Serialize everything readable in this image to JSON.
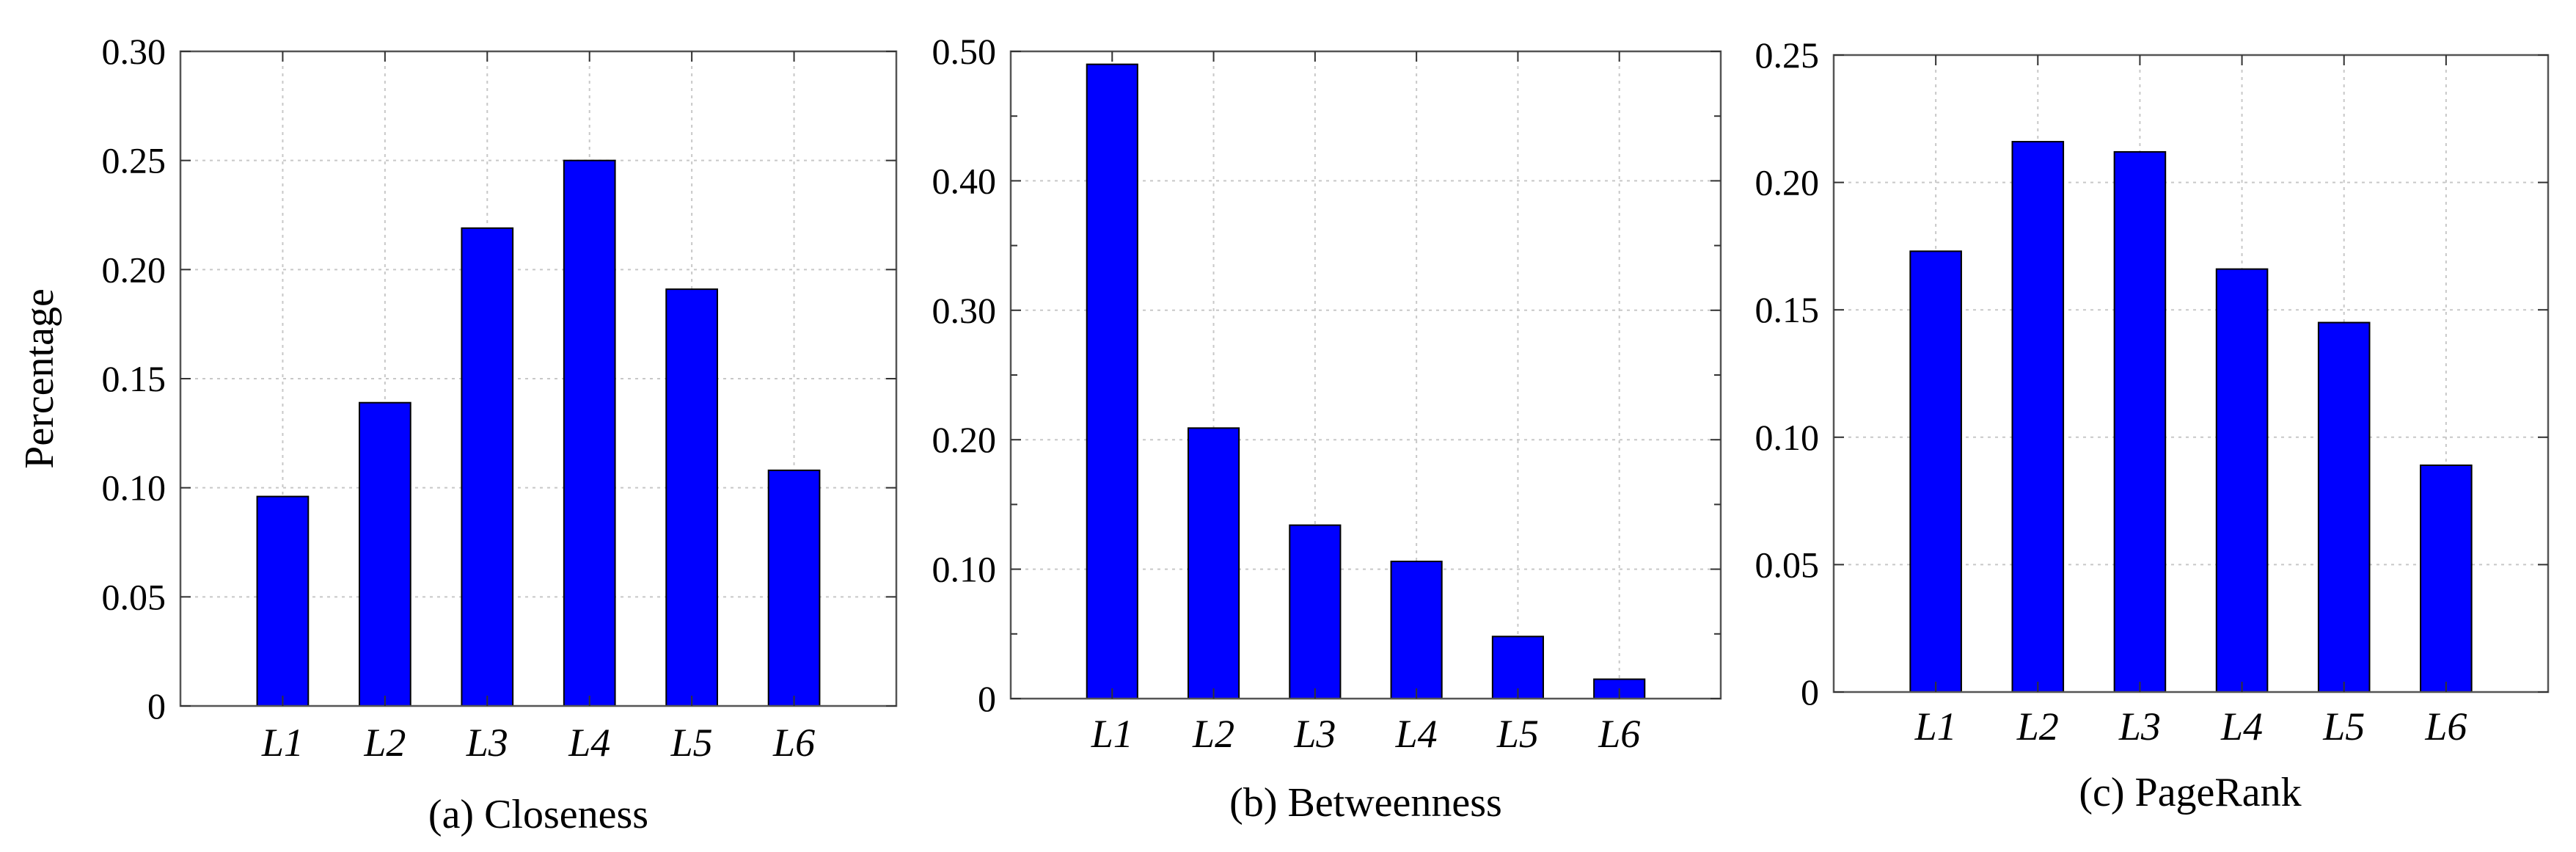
{
  "chart_data": [
    {
      "type": "bar",
      "title": "(a) Closeness",
      "ylabel": "Percentage",
      "xlabel": "",
      "categories": [
        "L1",
        "L2",
        "L3",
        "L4",
        "L5",
        "L6"
      ],
      "values": [
        0.096,
        0.139,
        0.219,
        0.25,
        0.191,
        0.108
      ],
      "ylim": [
        0,
        0.3
      ],
      "yticks": [
        0,
        0.05,
        0.1,
        0.15,
        0.2,
        0.25,
        0.3
      ],
      "ytick_labels": [
        "0",
        "0.05",
        "0.10",
        "0.15",
        "0.20",
        "0.25",
        "0.30"
      ],
      "grid": true,
      "bar_color": "#0000ff"
    },
    {
      "type": "bar",
      "title": "(b) Betweenness",
      "ylabel": "",
      "xlabel": "",
      "categories": [
        "L1",
        "L2",
        "L3",
        "L4",
        "L5",
        "L6"
      ],
      "values": [
        0.49,
        0.209,
        0.134,
        0.106,
        0.048,
        0.015
      ],
      "ylim": [
        0,
        0.5
      ],
      "yticks": [
        0,
        0.1,
        0.2,
        0.3,
        0.4,
        0.5
      ],
      "ytick_labels": [
        "0",
        "0.10",
        "0.20",
        "0.30",
        "0.40",
        "0.50"
      ],
      "minor_yticks": [
        0.05,
        0.15,
        0.25,
        0.35,
        0.45
      ],
      "grid": true,
      "bar_color": "#0000ff"
    },
    {
      "type": "bar",
      "title": "(c) PageRank",
      "ylabel": "",
      "xlabel": "",
      "categories": [
        "L1",
        "L2",
        "L3",
        "L4",
        "L5",
        "L6"
      ],
      "values": [
        0.173,
        0.216,
        0.212,
        0.166,
        0.145,
        0.089
      ],
      "ylim": [
        0,
        0.25
      ],
      "yticks": [
        0,
        0.05,
        0.1,
        0.15,
        0.2,
        0.25
      ],
      "ytick_labels": [
        "0",
        "0.05",
        "0.10",
        "0.15",
        "0.20",
        "0.25"
      ],
      "grid": true,
      "bar_color": "#0000ff"
    }
  ]
}
